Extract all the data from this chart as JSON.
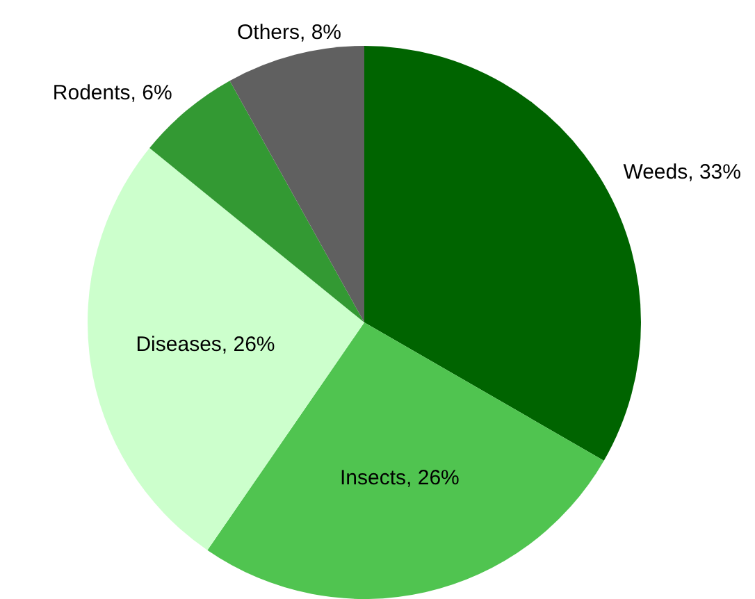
{
  "chart_data": {
    "type": "pie",
    "categories": [
      "Weeds",
      "Insects",
      "Diseases",
      "Rodents",
      "Others"
    ],
    "values": [
      33,
      26,
      26,
      6,
      8
    ],
    "colors": [
      "#006400",
      "#50c450",
      "#ccffcc",
      "#339933",
      "#606060"
    ],
    "value_labels": [
      "33%",
      "26%",
      "26%",
      "6%",
      "8%"
    ],
    "legend": false
  }
}
